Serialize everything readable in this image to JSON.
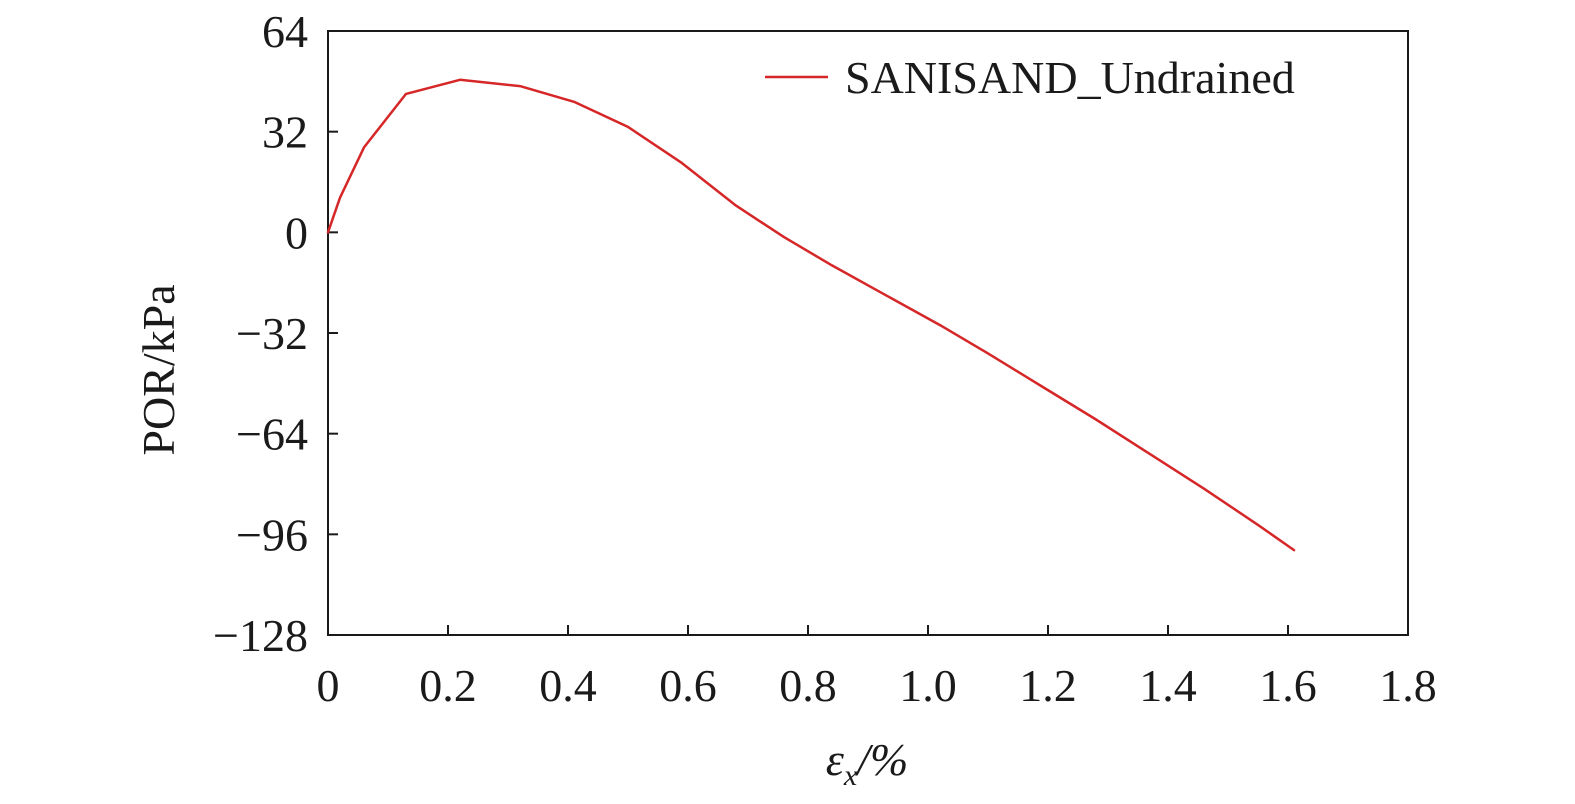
{
  "chart_data": {
    "type": "line",
    "title": "",
    "xlabel": {
      "main": "ε",
      "sub": "x",
      "suffix": "/%"
    },
    "ylabel": "POR/kPa",
    "xlim": [
      0,
      1.8
    ],
    "ylim": [
      -128,
      64
    ],
    "x_ticks": [
      {
        "value": 0,
        "label": "0"
      },
      {
        "value": 0.2,
        "label": "0.2"
      },
      {
        "value": 0.4,
        "label": "0.4"
      },
      {
        "value": 0.6,
        "label": "0.6"
      },
      {
        "value": 0.8,
        "label": "0.8"
      },
      {
        "value": 1.0,
        "label": "1.0"
      },
      {
        "value": 1.2,
        "label": "1.2"
      },
      {
        "value": 1.4,
        "label": "1.4"
      },
      {
        "value": 1.6,
        "label": "1.6"
      },
      {
        "value": 1.8,
        "label": "1.8"
      }
    ],
    "y_ticks": [
      {
        "value": 64,
        "label": "64"
      },
      {
        "value": 32,
        "label": "32"
      },
      {
        "value": 0,
        "label": "0"
      },
      {
        "value": -32,
        "label": "−32"
      },
      {
        "value": -64,
        "label": "−64"
      },
      {
        "value": -96,
        "label": "−96"
      },
      {
        "value": -128,
        "label": "−128"
      }
    ],
    "grid": false,
    "legend_position": "top-right",
    "series": [
      {
        "name": "SANISAND_Undrained",
        "color": "#d62728",
        "points": [
          [
            0.0,
            0.0
          ],
          [
            0.02,
            11.0
          ],
          [
            0.06,
            27.0
          ],
          [
            0.13,
            44.0
          ],
          [
            0.22,
            48.5
          ],
          [
            0.32,
            46.5
          ],
          [
            0.41,
            41.5
          ],
          [
            0.5,
            33.5
          ],
          [
            0.59,
            22.0
          ],
          [
            0.68,
            8.5
          ],
          [
            0.76,
            -1.5
          ],
          [
            0.84,
            -10.5
          ],
          [
            0.93,
            -20.0
          ],
          [
            1.02,
            -29.5
          ],
          [
            1.1,
            -38.5
          ],
          [
            1.19,
            -49.0
          ],
          [
            1.28,
            -59.5
          ],
          [
            1.37,
            -70.5
          ],
          [
            1.46,
            -81.5
          ],
          [
            1.55,
            -93.0
          ],
          [
            1.61,
            -101.0
          ]
        ]
      }
    ]
  }
}
